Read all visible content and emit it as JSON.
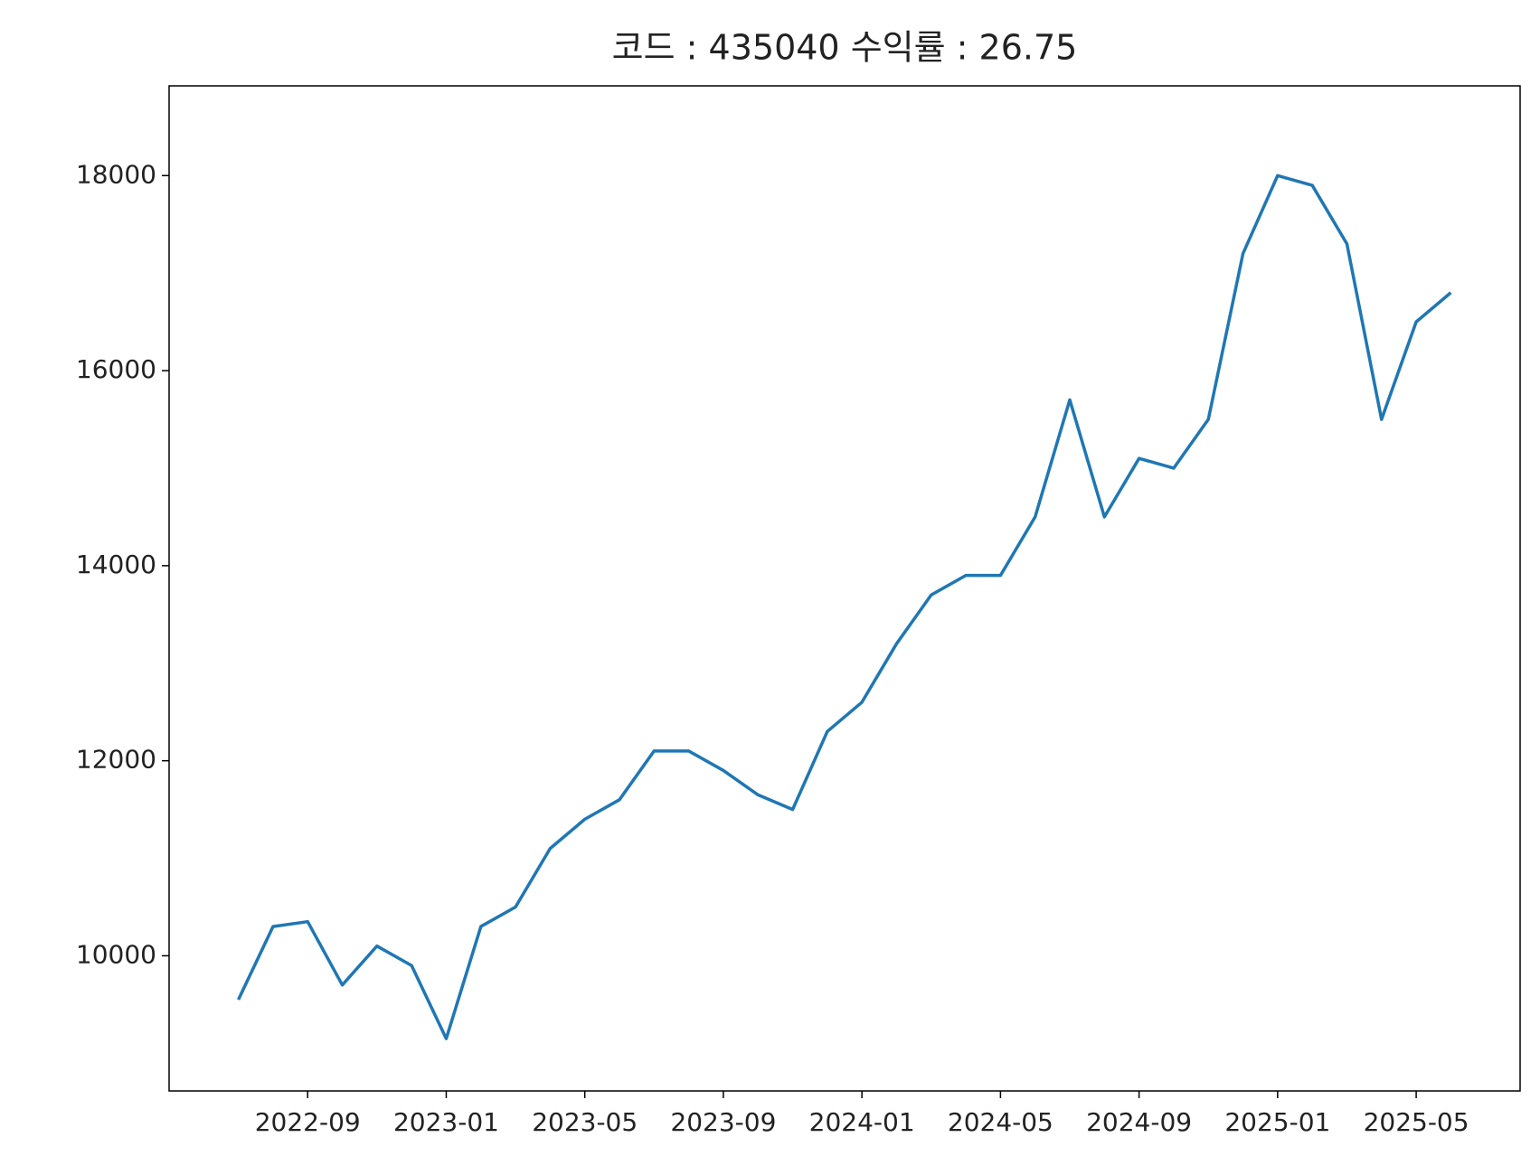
{
  "chart_data": {
    "type": "line",
    "title": "코드 : 435040 수익률 : 26.75",
    "x": [
      "2022-07",
      "2022-08",
      "2022-09",
      "2022-10",
      "2022-11",
      "2022-12",
      "2023-01",
      "2023-02",
      "2023-03",
      "2023-04",
      "2023-05",
      "2023-06",
      "2023-07",
      "2023-08",
      "2023-09",
      "2023-10",
      "2023-11",
      "2023-12",
      "2024-01",
      "2024-02",
      "2024-03",
      "2024-04",
      "2024-05",
      "2024-06",
      "2024-07",
      "2024-08",
      "2024-09",
      "2024-10",
      "2024-11",
      "2024-12",
      "2025-01",
      "2025-02",
      "2025-03",
      "2025-04",
      "2025-05",
      "2025-06"
    ],
    "series": [
      {
        "color": "#1f77b4",
        "values": [
          9550,
          10300,
          10350,
          9700,
          10100,
          9900,
          9150,
          10300,
          10500,
          11100,
          11400,
          11600,
          12100,
          12100,
          11900,
          11650,
          11500,
          12300,
          12600,
          13200,
          13700,
          13900,
          13900,
          14500,
          15700,
          14500,
          15100,
          15000,
          15500,
          17200,
          18000,
          17900,
          17300,
          15500,
          16500,
          16800
        ]
      }
    ],
    "xlim": [
      "2022-05",
      "2025-08"
    ],
    "xticks": [
      "2022-09",
      "2023-01",
      "2023-05",
      "2023-09",
      "2024-01",
      "2024-05",
      "2024-09",
      "2025-01",
      "2025-05"
    ],
    "ylim": [
      8614,
      18920
    ],
    "yticks": [
      10000,
      12000,
      14000,
      16000,
      18000
    ],
    "grid": false
  }
}
